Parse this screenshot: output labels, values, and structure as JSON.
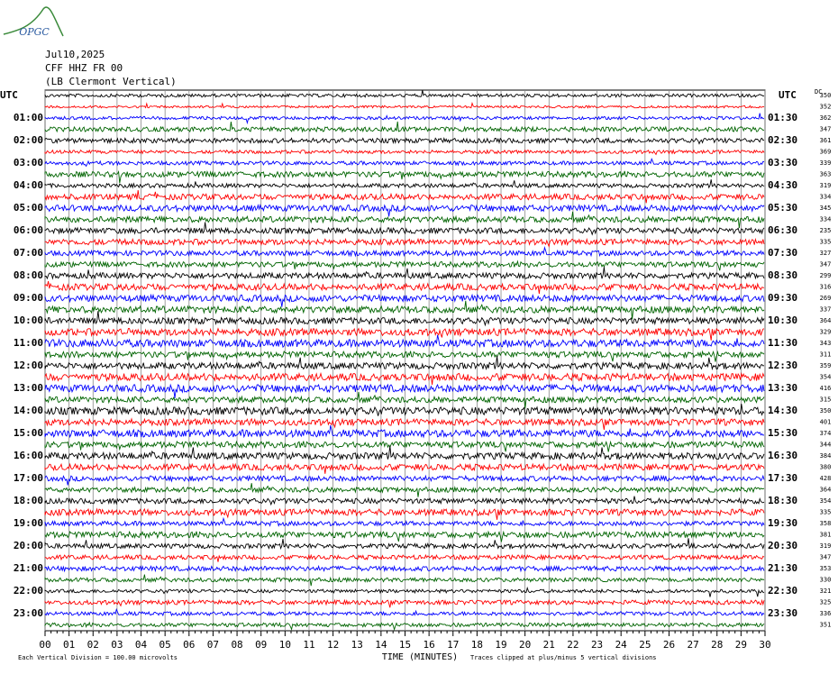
{
  "logo": "OPGC",
  "chart_data": {
    "type": "helicorder",
    "title_lines": [
      "Jul10,2025",
      "CFF HHZ FR 00",
      "(LB Clermont Vertical)"
    ],
    "time_zone": "UTC",
    "dc_header": "DC",
    "xlabel": "TIME (MINUTES)",
    "footnote_left": "Each Vertical Division =  100.00 microvolts",
    "footnote_right": "Traces clipped at plus/minus 5 vertical divisions",
    "xlim": [
      0,
      30
    ],
    "xticks": [
      {
        "value": 0,
        "label": "00"
      },
      {
        "value": 1,
        "label": "01"
      },
      {
        "value": 2,
        "label": "02"
      },
      {
        "value": 3,
        "label": "03"
      },
      {
        "value": 4,
        "label": "04"
      },
      {
        "value": 5,
        "label": "05"
      },
      {
        "value": 6,
        "label": "06"
      },
      {
        "value": 7,
        "label": "07"
      },
      {
        "value": 8,
        "label": "08"
      },
      {
        "value": 9,
        "label": "09"
      },
      {
        "value": 10,
        "label": "10"
      },
      {
        "value": 11,
        "label": "11"
      },
      {
        "value": 12,
        "label": "12"
      },
      {
        "value": 13,
        "label": "13"
      },
      {
        "value": 14,
        "label": "14"
      },
      {
        "value": 15,
        "label": "15"
      },
      {
        "value": 16,
        "label": "16"
      },
      {
        "value": 17,
        "label": "17"
      },
      {
        "value": 18,
        "label": "18"
      },
      {
        "value": 19,
        "label": "19"
      },
      {
        "value": 20,
        "label": "20"
      },
      {
        "value": 21,
        "label": "21"
      },
      {
        "value": 22,
        "label": "22"
      },
      {
        "value": 23,
        "label": "23"
      },
      {
        "value": 24,
        "label": "24"
      },
      {
        "value": 25,
        "label": "25"
      },
      {
        "value": 26,
        "label": "26"
      },
      {
        "value": 27,
        "label": "27"
      },
      {
        "value": 28,
        "label": "28"
      },
      {
        "value": 29,
        "label": "29"
      },
      {
        "value": 30,
        "label": "30"
      }
    ],
    "trace_colors": [
      "#000000",
      "#ff0000",
      "#0000ff",
      "#006400"
    ],
    "left_labels": [
      null,
      null,
      "01:00",
      null,
      "02:00",
      null,
      "03:00",
      null,
      "04:00",
      null,
      "05:00",
      null,
      "06:00",
      null,
      "07:00",
      null,
      "08:00",
      null,
      "09:00",
      null,
      "10:00",
      null,
      "11:00",
      null,
      "12:00",
      null,
      "13:00",
      null,
      "14:00",
      null,
      "15:00",
      null,
      "16:00",
      null,
      "17:00",
      null,
      "18:00",
      null,
      "19:00",
      null,
      "20:00",
      null,
      "21:00",
      null,
      "22:00",
      null,
      "23:00",
      null
    ],
    "right_labels": [
      null,
      null,
      "01:30",
      null,
      "02:30",
      null,
      "03:30",
      null,
      "04:30",
      null,
      "05:30",
      null,
      "06:30",
      null,
      "07:30",
      null,
      "08:30",
      null,
      "09:30",
      null,
      "10:30",
      null,
      "11:30",
      null,
      "12:30",
      null,
      "13:30",
      null,
      "14:30",
      null,
      "15:30",
      null,
      "16:30",
      null,
      "17:30",
      null,
      "18:30",
      null,
      "19:30",
      null,
      "20:30",
      null,
      "21:30",
      null,
      "22:30",
      null,
      "23:30",
      null
    ],
    "dc_values": [
      350,
      352,
      362,
      347,
      361,
      369,
      339,
      363,
      319,
      334,
      345,
      334,
      235,
      335,
      327,
      347,
      299,
      316,
      269,
      337,
      364,
      329,
      343,
      311,
      359,
      354,
      416,
      315,
      350,
      401,
      374,
      344,
      384,
      380,
      428,
      364,
      354,
      335,
      358,
      381,
      319,
      347,
      353,
      330,
      321,
      325,
      336,
      351
    ]
  }
}
